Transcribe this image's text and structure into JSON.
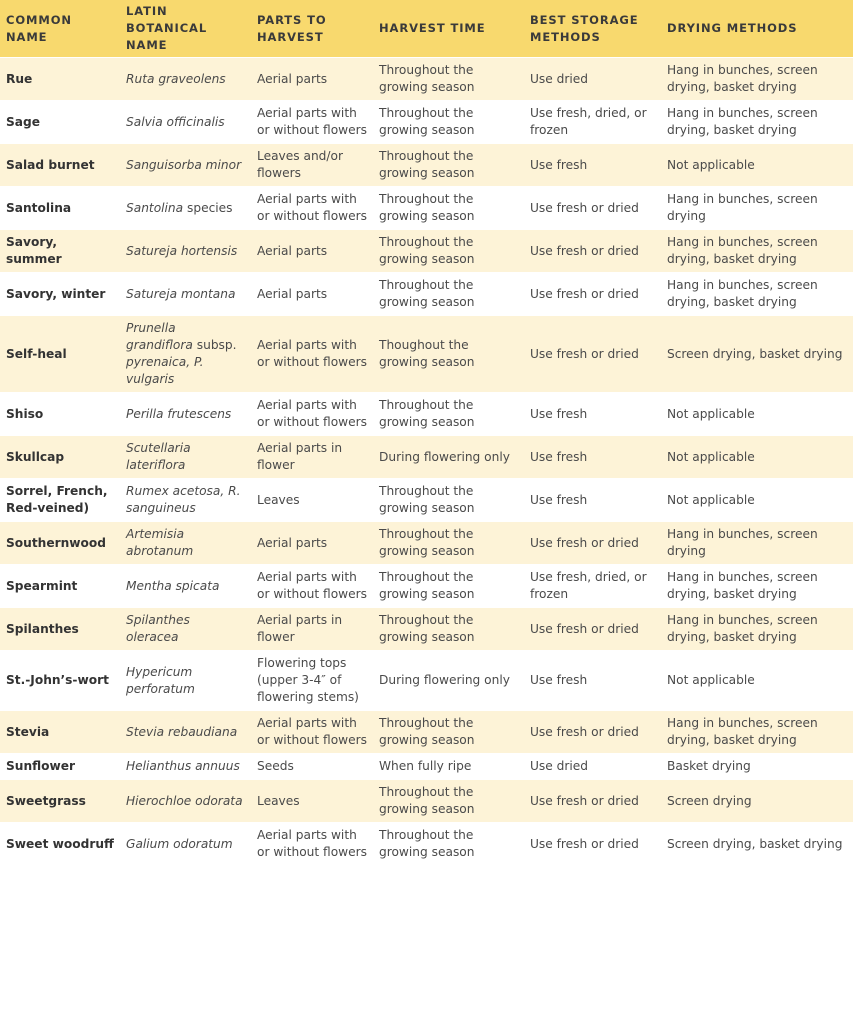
{
  "table": {
    "header": [
      "COMMON NAME",
      "LATIN BOTANICAL NAME",
      "PARTS TO HARVEST",
      "HARVEST TIME",
      "BEST STORAGE METHODS",
      "DRYING METHODS"
    ],
    "rows": [
      {
        "common": "Rue",
        "latin": [
          {
            "text": "Ruta graveolens",
            "italic": true
          }
        ],
        "parts": "Aerial parts",
        "harvest": "Throughout the growing season",
        "storage": "Use dried",
        "drying": "Hang in bunches, screen drying, basket drying"
      },
      {
        "common": "Sage",
        "latin": [
          {
            "text": "Salvia officinalis",
            "italic": true
          }
        ],
        "parts": "Aerial parts with or without flowers",
        "harvest": "Throughout the growing season",
        "storage": "Use fresh, dried, or frozen",
        "drying": "Hang in bunches, screen drying, basket drying"
      },
      {
        "common": "Salad burnet",
        "latin": [
          {
            "text": "Sanguisorba minor",
            "italic": true
          }
        ],
        "parts": "Leaves and/or flowers",
        "harvest": "Throughout the growing season",
        "storage": "Use fresh",
        "drying": "Not applicable"
      },
      {
        "common": "Santolina",
        "latin": [
          {
            "text": "Santolina",
            "italic": true
          },
          {
            "text": "species",
            "italic": false
          }
        ],
        "parts": "Aerial parts with or without flowers",
        "harvest": "Throughout the growing season",
        "storage": "Use fresh or dried",
        "drying": "Hang in bunches, screen drying"
      },
      {
        "common": "Savory, summer",
        "latin": [
          {
            "text": "Satureja hortensis",
            "italic": true
          }
        ],
        "parts": "Aerial parts",
        "harvest": "Throughout the growing season",
        "storage": "Use fresh or dried",
        "drying": "Hang in bunches, screen drying, basket drying"
      },
      {
        "common": "Savory, winter",
        "latin": [
          {
            "text": "Satureja montana",
            "italic": true
          }
        ],
        "parts": "Aerial parts",
        "harvest": "Throughout the growing season",
        "storage": "Use fresh or dried",
        "drying": "Hang in bunches, screen drying, basket drying"
      },
      {
        "common": "Self-heal",
        "latin": [
          {
            "text": "Prunella grandiflora",
            "italic": true
          },
          {
            "text": "subsp.",
            "italic": false
          },
          {
            "text": "pyrenaica, P. vulgaris",
            "italic": true
          }
        ],
        "parts": "Aerial parts with or without flowers",
        "harvest": "Thoughout the growing season",
        "storage": "Use fresh or dried",
        "drying": "Screen drying, basket drying"
      },
      {
        "common": "Shiso",
        "latin": [
          {
            "text": "Perilla frutescens",
            "italic": true
          }
        ],
        "parts": "Aerial parts with or without flowers",
        "harvest": "Throughout the growing season",
        "storage": "Use fresh",
        "drying": "Not applicable"
      },
      {
        "common": "Skullcap",
        "latin": [
          {
            "text": "Scutellaria lateriflora",
            "italic": true
          }
        ],
        "parts": "Aerial parts in flower",
        "harvest": "During flowering only",
        "storage": "Use fresh",
        "drying": "Not applicable"
      },
      {
        "common": "Sorrel, French, Red-veined)",
        "latin": [
          {
            "text": "Rumex acetosa, R. sanguineus",
            "italic": true
          }
        ],
        "parts": "Leaves",
        "harvest": "Throughout the growing season",
        "storage": "Use fresh",
        "drying": "Not applicable"
      },
      {
        "common": "Southernwood",
        "latin": [
          {
            "text": "Artemisia abrotanum",
            "italic": true
          }
        ],
        "parts": "Aerial parts",
        "harvest": "Throughout the growing season",
        "storage": "Use fresh or dried",
        "drying": "Hang in bunches, screen drying"
      },
      {
        "common": "Spearmint",
        "latin": [
          {
            "text": "Mentha spicata",
            "italic": true
          }
        ],
        "parts": "Aerial parts with or without flowers",
        "harvest": "Throughout the growing season",
        "storage": "Use fresh, dried, or frozen",
        "drying": "Hang in bunches, screen drying, basket drying"
      },
      {
        "common": "Spilanthes",
        "latin": [
          {
            "text": "Spilanthes oleracea",
            "italic": true
          }
        ],
        "parts": "Aerial parts in flower",
        "harvest": "Throughout the growing season",
        "storage": "Use fresh or dried",
        "drying": "Hang in bunches, screen drying, basket drying"
      },
      {
        "common": "St.-John’s-wort",
        "latin": [
          {
            "text": "Hypericum perforatum",
            "italic": true
          }
        ],
        "parts": "Flowering tops (upper 3-4″ of flowering stems)",
        "harvest": "During flowering only",
        "storage": "Use fresh",
        "drying": "Not applicable"
      },
      {
        "common": "Stevia",
        "latin": [
          {
            "text": "Stevia rebaudiana",
            "italic": true
          }
        ],
        "parts": "Aerial parts with or without flowers",
        "harvest": "Throughout the growing season",
        "storage": "Use fresh or dried",
        "drying": "Hang in bunches, screen drying, basket drying"
      },
      {
        "common": "Sunflower",
        "latin": [
          {
            "text": "Helianthus annuus",
            "italic": true
          }
        ],
        "parts": "Seeds",
        "harvest": "When fully ripe",
        "storage": "Use dried",
        "drying": "Basket drying"
      },
      {
        "common": "Sweetgrass",
        "latin": [
          {
            "text": "Hierochloe odorata",
            "italic": true
          }
        ],
        "parts": "Leaves",
        "harvest": "Throughout the growing season",
        "storage": "Use fresh or dried",
        "drying": "Screen drying"
      },
      {
        "common": "Sweet woodruff",
        "latin": [
          {
            "text": "Galium odoratum",
            "italic": true
          }
        ],
        "parts": "Aerial parts with or without flowers",
        "harvest": "Throughout the growing season",
        "storage": "Use fresh or dried",
        "drying": "Screen drying, basket drying"
      }
    ]
  }
}
